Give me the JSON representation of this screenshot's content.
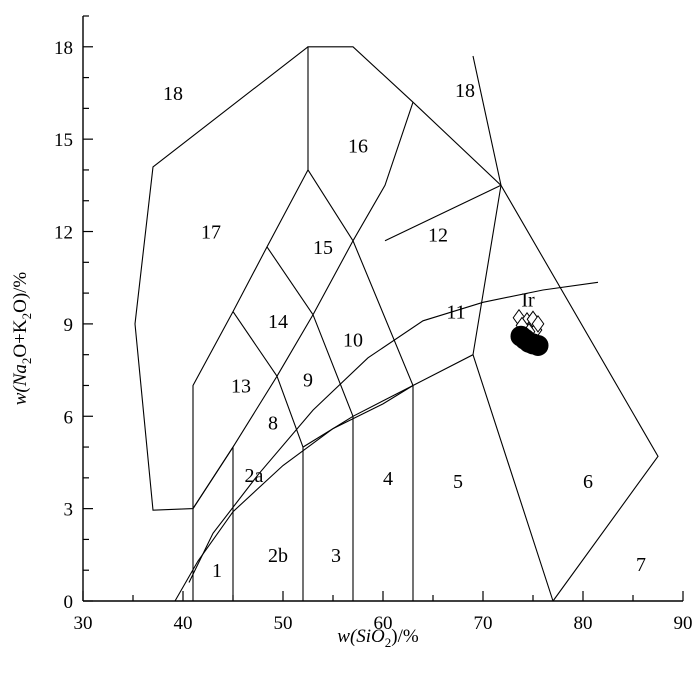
{
  "chart_data": {
    "type": "scatter",
    "title": "",
    "xlabel": {
      "prefix": "w(SiO",
      "sub": "2",
      "suffix": ")/%"
    },
    "ylabel": {
      "prefix": "w(Na",
      "sub1": "2",
      "mid": "O+K",
      "sub2": "2",
      "suffix": "O)/%"
    },
    "xlim": [
      30,
      90
    ],
    "ylim": [
      0,
      19
    ],
    "xticks": [
      30,
      40,
      50,
      60,
      70,
      80,
      90
    ],
    "yticks": [
      0,
      3,
      6,
      9,
      12,
      15,
      18
    ],
    "grid": false,
    "fields": [
      [
        [
          41,
          0
        ],
        [
          41,
          7
        ],
        [
          45,
          9.4
        ],
        [
          48.4,
          11.5
        ],
        [
          52.5,
          14
        ],
        [
          52.5,
          18
        ],
        [
          57,
          18
        ],
        [
          63,
          16.2
        ],
        [
          71.8,
          13.5
        ],
        [
          87.5,
          4.7
        ],
        [
          77,
          0
        ]
      ],
      [
        [
          45,
          0
        ],
        [
          45,
          5
        ],
        [
          41,
          3
        ],
        [
          37,
          2.95
        ],
        [
          35.2,
          9
        ],
        [
          37,
          14.1
        ],
        [
          52.5,
          18
        ]
      ],
      [
        [
          52,
          0
        ],
        [
          52,
          5
        ],
        [
          57,
          6
        ]
      ],
      [
        [
          57,
          0
        ],
        [
          57,
          6
        ],
        [
          63,
          7
        ]
      ],
      [
        [
          63,
          0
        ],
        [
          63,
          7
        ],
        [
          69,
          8
        ],
        [
          77,
          0
        ]
      ],
      [
        [
          69,
          8
        ],
        [
          71.8,
          13.5
        ],
        [
          69,
          17.7
        ]
      ],
      [
        [
          45,
          5
        ],
        [
          49.4,
          7.3
        ],
        [
          52,
          5
        ]
      ],
      [
        [
          49.4,
          7.3
        ],
        [
          53,
          9.3
        ],
        [
          57,
          6
        ]
      ],
      [
        [
          53,
          9.3
        ],
        [
          57,
          11.7
        ],
        [
          63,
          7
        ]
      ],
      [
        [
          41,
          3
        ],
        [
          45,
          5
        ]
      ],
      [
        [
          45,
          9.4
        ],
        [
          49.4,
          7.3
        ]
      ],
      [
        [
          48.4,
          11.5
        ],
        [
          53,
          9.3
        ]
      ],
      [
        [
          52.5,
          14
        ],
        [
          57,
          11.7
        ],
        [
          60.2,
          13.5
        ],
        [
          63,
          16.2
        ]
      ],
      [
        [
          60.2,
          11.7
        ],
        [
          71.8,
          13.5
        ]
      ]
    ],
    "alkaline_curves": [
      [
        [
          39.2,
          0
        ],
        [
          41.5,
          1.3
        ],
        [
          45,
          2.9
        ],
        [
          50,
          4.4
        ],
        [
          55,
          5.6
        ],
        [
          60,
          6.4
        ],
        [
          63,
          7
        ]
      ],
      [
        [
          40.6,
          0.6
        ],
        [
          43,
          2.2
        ],
        [
          47.5,
          4.1
        ],
        [
          53,
          6.2
        ],
        [
          58.5,
          7.9
        ],
        [
          64,
          9.1
        ],
        [
          70,
          9.7
        ],
        [
          76,
          10.1
        ],
        [
          81.5,
          10.35
        ]
      ]
    ],
    "field_labels": [
      {
        "text": "1",
        "x": 43.4,
        "y": 1.0
      },
      {
        "text": "2a",
        "x": 47.1,
        "y": 4.1
      },
      {
        "text": "2b",
        "x": 49.5,
        "y": 1.5
      },
      {
        "text": "3",
        "x": 55.3,
        "y": 1.5
      },
      {
        "text": "4",
        "x": 60.5,
        "y": 4.0
      },
      {
        "text": "5",
        "x": 67.5,
        "y": 3.9
      },
      {
        "text": "6",
        "x": 80.5,
        "y": 3.9
      },
      {
        "text": "7",
        "x": 85.8,
        "y": 1.2
      },
      {
        "text": "8",
        "x": 49.0,
        "y": 5.8
      },
      {
        "text": "9",
        "x": 52.5,
        "y": 7.2
      },
      {
        "text": "10",
        "x": 57.0,
        "y": 8.5
      },
      {
        "text": "11",
        "x": 67.3,
        "y": 9.4
      },
      {
        "text": "12",
        "x": 65.5,
        "y": 11.9
      },
      {
        "text": "13",
        "x": 45.8,
        "y": 7.0
      },
      {
        "text": "14",
        "x": 49.5,
        "y": 9.1
      },
      {
        "text": "15",
        "x": 54.0,
        "y": 11.5
      },
      {
        "text": "16",
        "x": 57.5,
        "y": 14.8
      },
      {
        "text": "17",
        "x": 42.8,
        "y": 12.0
      },
      {
        "text": "18",
        "x": 39.0,
        "y": 16.5
      },
      {
        "text": "18",
        "x": 68.2,
        "y": 16.6
      },
      {
        "text": "Ir",
        "x": 74.5,
        "y": 9.8
      }
    ],
    "series": [
      {
        "marker": "diamond",
        "points": [
          [
            73.6,
            9.2
          ],
          [
            74.0,
            8.9
          ],
          [
            74.4,
            9.1
          ],
          [
            74.8,
            8.9
          ],
          [
            75.0,
            9.15
          ],
          [
            75.3,
            8.8
          ],
          [
            74.6,
            8.75
          ],
          [
            73.9,
            8.95
          ],
          [
            75.5,
            9.0
          ]
        ]
      },
      {
        "marker": "circle",
        "points": [
          [
            73.8,
            8.6
          ],
          [
            74.2,
            8.5
          ],
          [
            74.6,
            8.4
          ],
          [
            75.0,
            8.35
          ],
          [
            75.5,
            8.3
          ]
        ]
      }
    ]
  }
}
